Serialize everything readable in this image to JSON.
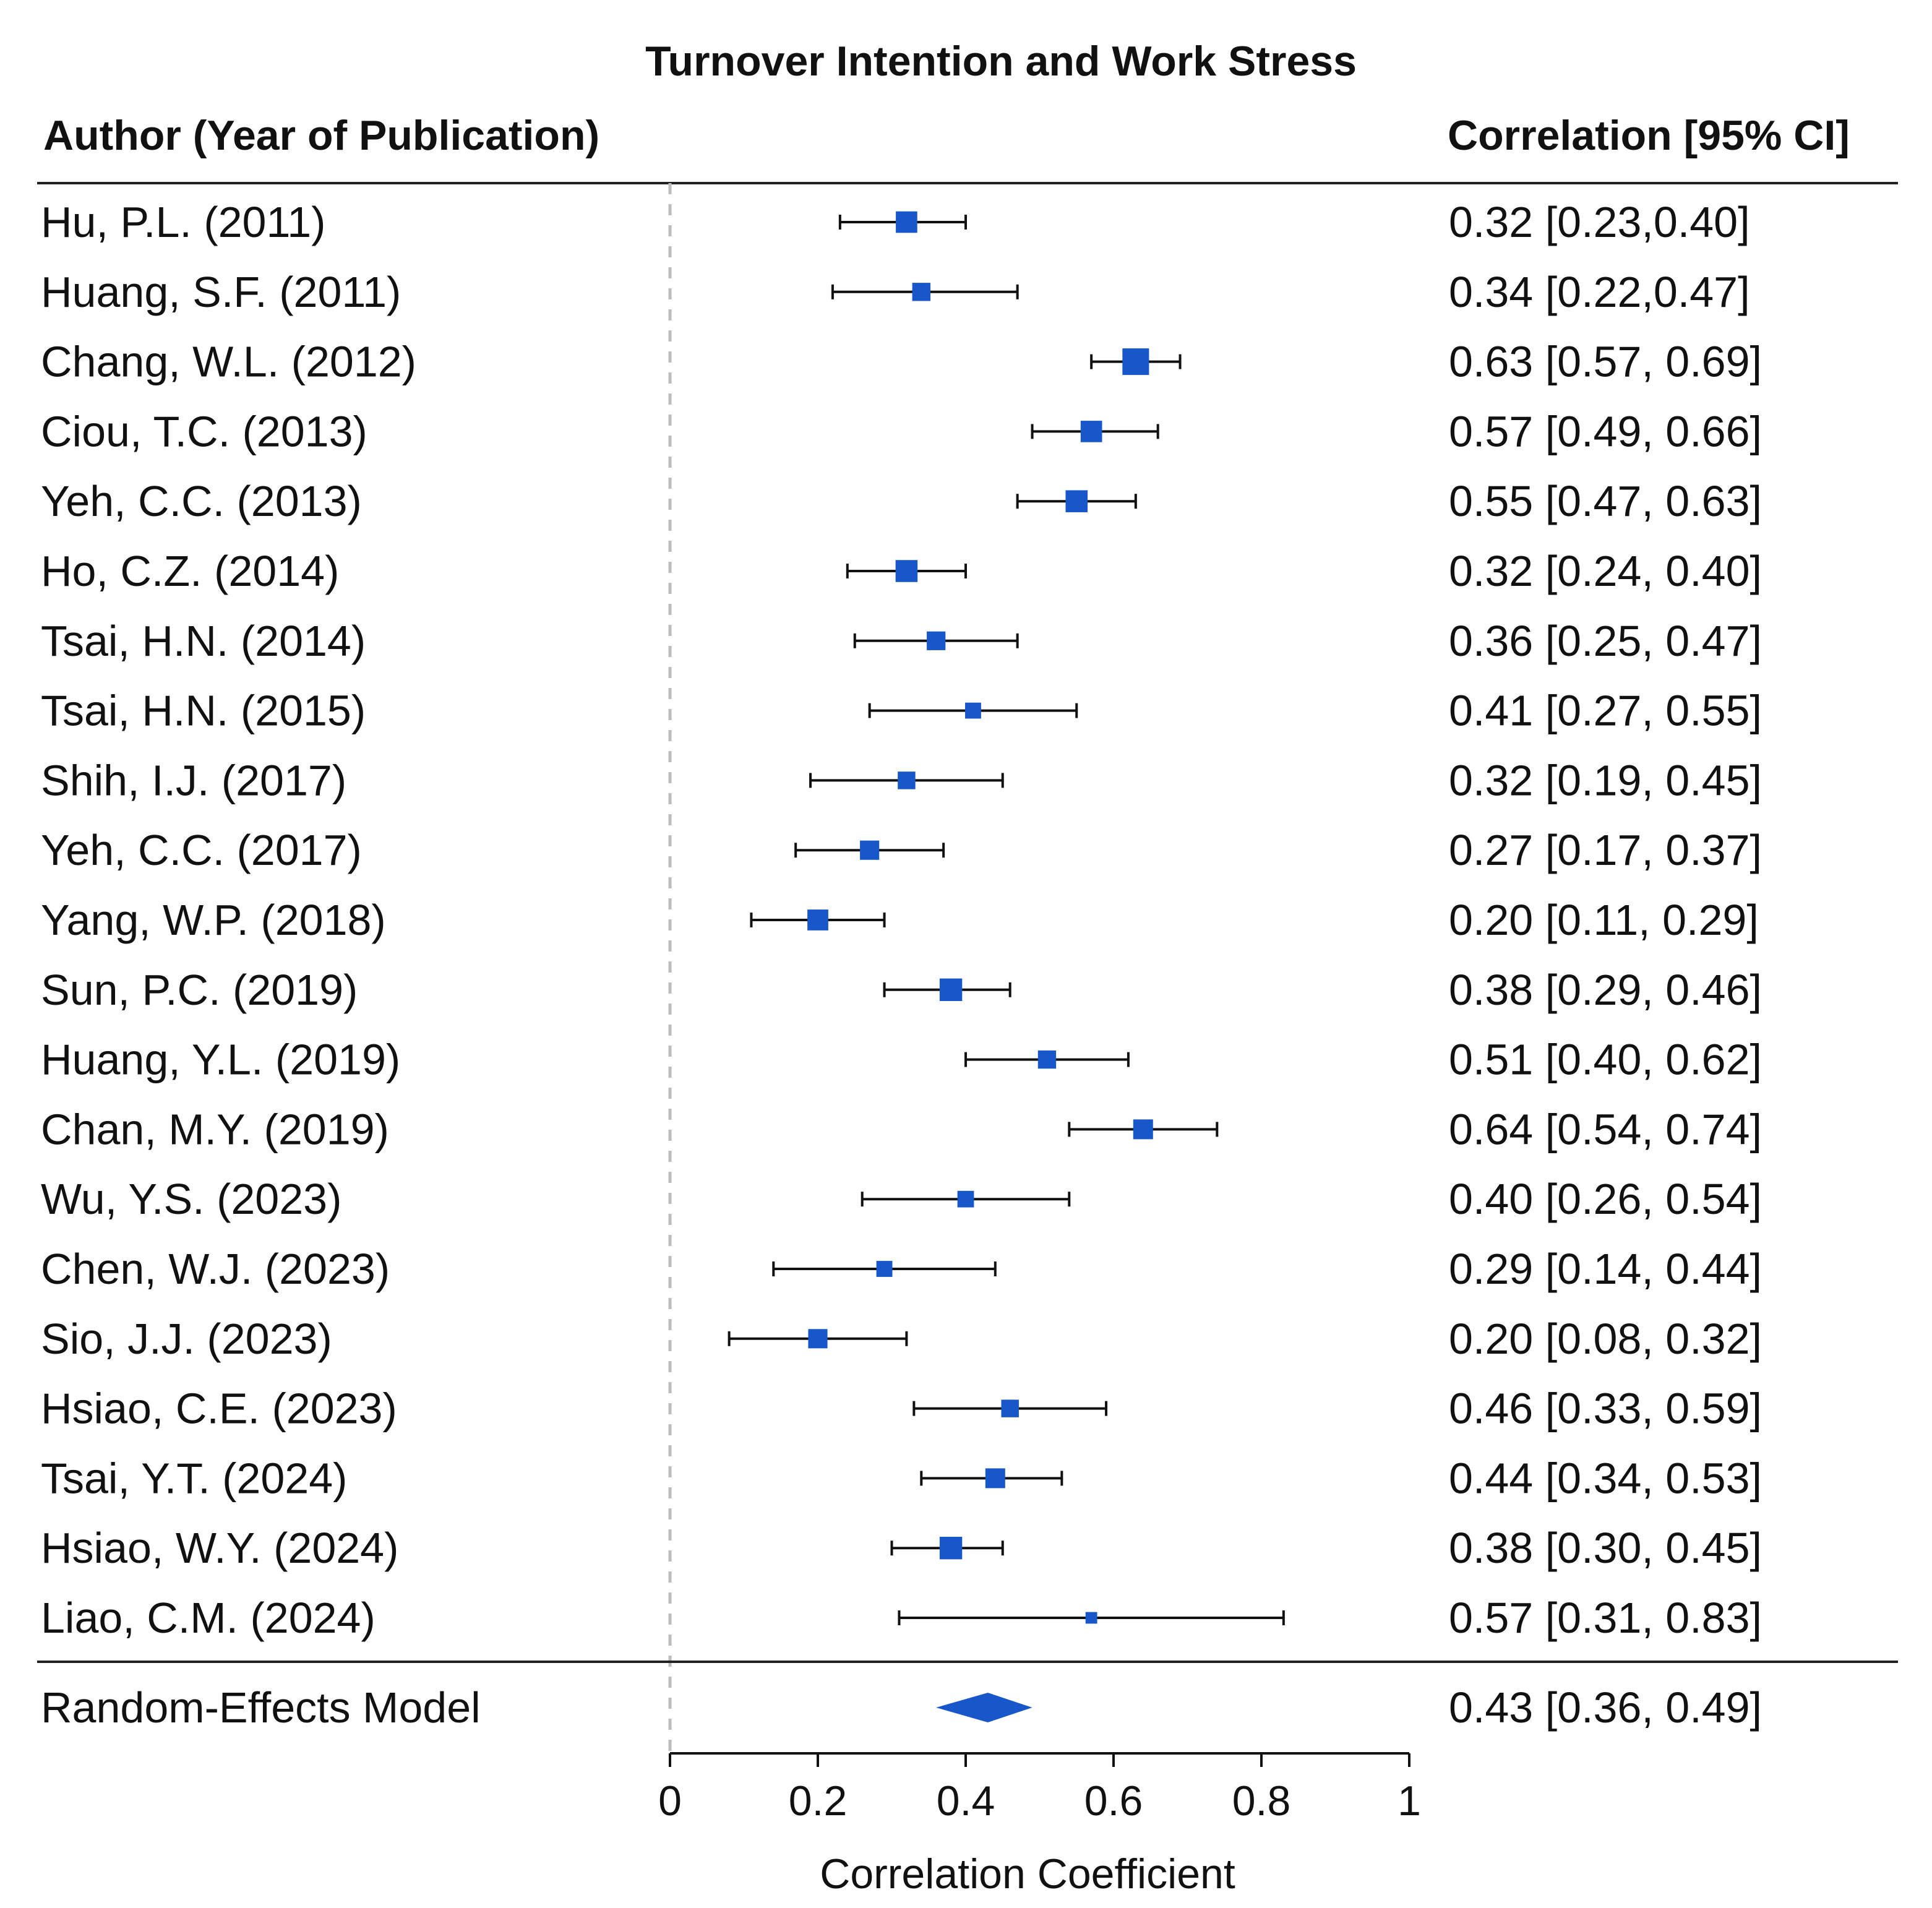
{
  "chart_data": {
    "type": "forest",
    "title": "Turnover Intention and Work Stress",
    "left_header": "Author (Year of Publication)",
    "right_header": "Correlation [95% CI]",
    "xlabel": "Correlation Coefficient",
    "xlim": [
      0,
      1
    ],
    "xticks": [
      0,
      0.2,
      0.4,
      0.6,
      0.8,
      1
    ],
    "xtick_labels": [
      "0",
      "0.2",
      "0.4",
      "0.6",
      "0.8",
      "1"
    ],
    "reference_line": 0,
    "marker_color": "#1757c9",
    "studies": [
      {
        "label": "Hu, P.L. (2011)",
        "estimate": 0.32,
        "lower": 0.23,
        "upper": 0.4,
        "text": "0.32 [0.23,0.40]",
        "weight": 0.56
      },
      {
        "label": "Huang, S.F. (2011)",
        "estimate": 0.34,
        "lower": 0.22,
        "upper": 0.47,
        "text": "0.34 [0.22,0.47]",
        "weight": 0.44
      },
      {
        "label": "Chang, W.L. (2012)",
        "estimate": 0.63,
        "lower": 0.57,
        "upper": 0.69,
        "text": "0.63 [0.57, 0.69]",
        "weight": 0.75
      },
      {
        "label": "Ciou, T.C. (2013)",
        "estimate": 0.57,
        "lower": 0.49,
        "upper": 0.66,
        "text": "0.57 [0.49, 0.66]",
        "weight": 0.56
      },
      {
        "label": "Yeh, C.C. (2013)",
        "estimate": 0.55,
        "lower": 0.47,
        "upper": 0.63,
        "text": "0.55 [0.47, 0.63]",
        "weight": 0.58
      },
      {
        "label": "Ho, C.Z. (2014)",
        "estimate": 0.32,
        "lower": 0.24,
        "upper": 0.4,
        "text": "0.32 [0.24, 0.40]",
        "weight": 0.58
      },
      {
        "label": "Tsai, H.N. (2014)",
        "estimate": 0.36,
        "lower": 0.25,
        "upper": 0.47,
        "text": "0.36 [0.25, 0.47]",
        "weight": 0.46
      },
      {
        "label": "Tsai, H.N. (2015)",
        "estimate": 0.41,
        "lower": 0.27,
        "upper": 0.55,
        "text": "0.41 [0.27, 0.55]",
        "weight": 0.36
      },
      {
        "label": "Shih, I.J. (2017)",
        "estimate": 0.32,
        "lower": 0.19,
        "upper": 0.45,
        "text": "0.32 [0.19, 0.45]",
        "weight": 0.42
      },
      {
        "label": "Yeh, C.C. (2017)",
        "estimate": 0.27,
        "lower": 0.17,
        "upper": 0.37,
        "text": "0.27 [0.17, 0.37]",
        "weight": 0.48
      },
      {
        "label": "Yang, W.P. (2018)",
        "estimate": 0.2,
        "lower": 0.11,
        "upper": 0.29,
        "text": "0.20 [0.11, 0.29]",
        "weight": 0.54
      },
      {
        "label": "Sun, P.C. (2019)",
        "estimate": 0.38,
        "lower": 0.29,
        "upper": 0.46,
        "text": "0.38 [0.29, 0.46]",
        "weight": 0.6
      },
      {
        "label": "Huang, Y.L. (2019)",
        "estimate": 0.51,
        "lower": 0.4,
        "upper": 0.62,
        "text": "0.51 [0.40, 0.62]",
        "weight": 0.44
      },
      {
        "label": "Chan, M.Y. (2019)",
        "estimate": 0.64,
        "lower": 0.54,
        "upper": 0.74,
        "text": "0.64 [0.54, 0.74]",
        "weight": 0.5
      },
      {
        "label": "Wu, Y.S. (2023)",
        "estimate": 0.4,
        "lower": 0.26,
        "upper": 0.54,
        "text": "0.40 [0.26, 0.54]",
        "weight": 0.38
      },
      {
        "label": "Chen, W.J. (2023)",
        "estimate": 0.29,
        "lower": 0.14,
        "upper": 0.44,
        "text": "0.29 [0.14, 0.44]",
        "weight": 0.36
      },
      {
        "label": "Sio, J.J. (2023)",
        "estimate": 0.2,
        "lower": 0.08,
        "upper": 0.32,
        "text": "0.20 [0.08, 0.32]",
        "weight": 0.48
      },
      {
        "label": "Hsiao, C.E. (2023)",
        "estimate": 0.46,
        "lower": 0.33,
        "upper": 0.59,
        "text": "0.46 [0.33, 0.59]",
        "weight": 0.42
      },
      {
        "label": "Tsai, Y.T. (2024)",
        "estimate": 0.44,
        "lower": 0.34,
        "upper": 0.53,
        "text": "0.44 [0.34, 0.53]",
        "weight": 0.5
      },
      {
        "label": "Hsiao, W.Y. (2024)",
        "estimate": 0.38,
        "lower": 0.3,
        "upper": 0.45,
        "text": "0.38 [0.30, 0.45]",
        "weight": 0.6
      },
      {
        "label": "Liao, C.M. (2024)",
        "estimate": 0.57,
        "lower": 0.31,
        "upper": 0.83,
        "text": "0.57 [0.31, 0.83]",
        "weight": 0.2
      }
    ],
    "summary": {
      "label": "Random-Effects Model",
      "estimate": 0.43,
      "lower": 0.36,
      "upper": 0.49,
      "text": "0.43 [0.36, 0.49]"
    }
  }
}
